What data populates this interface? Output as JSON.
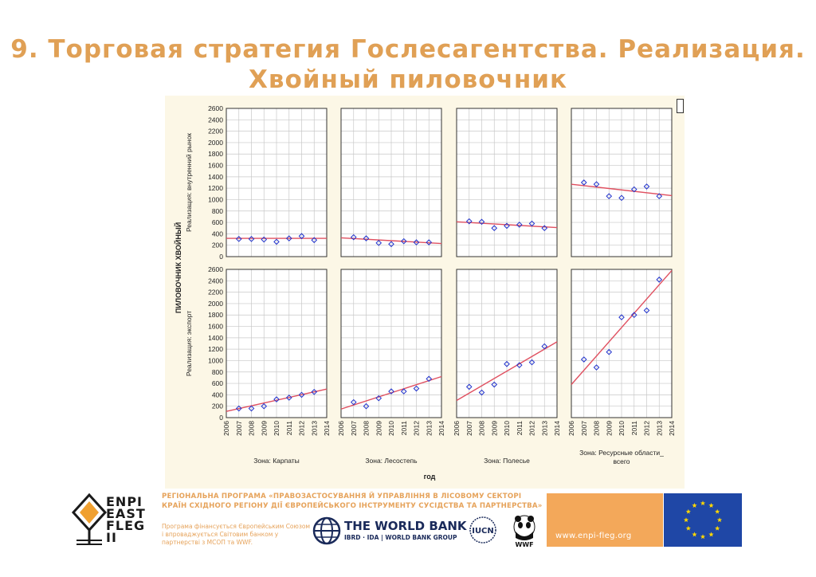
{
  "slide": {
    "title_line1": "9. Торговая стратегия Гослесагентства. Реализация.",
    "title_line2": "Хвойный пиловочник",
    "title_color": "#e0a055"
  },
  "chart_data": {
    "type": "scatter",
    "layout": "2x4 small multiples with linear trend lines",
    "ylabel": "ПИЛОВОЧНИК ХВОЙНЫЙ",
    "xlabel": "год",
    "row_labels": [
      "Реализация: внутренний рынок",
      "Реализация: экспорт"
    ],
    "zone_labels": [
      "Зона: Карпаты",
      "Зона: Лесостепь",
      "Зона: Полесье",
      "Зона: Ресурсные области_всего"
    ],
    "xlim": [
      2006,
      2014
    ],
    "ylim": [
      0,
      2600
    ],
    "x_ticks": [
      2006,
      2007,
      2008,
      2009,
      2010,
      2011,
      2012,
      2013,
      2014
    ],
    "y_ticks": [
      0,
      200,
      400,
      600,
      800,
      1000,
      1200,
      1400,
      1600,
      1800,
      2000,
      2200,
      2400,
      2600
    ],
    "grid": true,
    "point_color": "#2233cc",
    "line_color": "#e05060",
    "panels": [
      {
        "row": 0,
        "col": 0,
        "x": [
          2007,
          2008,
          2009,
          2010,
          2011,
          2012,
          2013
        ],
        "y": [
          310,
          310,
          300,
          260,
          320,
          360,
          290
        ],
        "trend": [
          [
            2006,
            320
          ],
          [
            2014,
            320
          ]
        ]
      },
      {
        "row": 0,
        "col": 1,
        "x": [
          2007,
          2008,
          2009,
          2010,
          2011,
          2012,
          2013
        ],
        "y": [
          340,
          320,
          240,
          220,
          270,
          250,
          250
        ],
        "trend": [
          [
            2006,
            330
          ],
          [
            2014,
            230
          ]
        ]
      },
      {
        "row": 0,
        "col": 2,
        "x": [
          2007,
          2008,
          2009,
          2010,
          2011,
          2012,
          2013
        ],
        "y": [
          620,
          610,
          500,
          540,
          560,
          580,
          500
        ],
        "trend": [
          [
            2006,
            610
          ],
          [
            2014,
            510
          ]
        ]
      },
      {
        "row": 0,
        "col": 3,
        "x": [
          2007,
          2008,
          2009,
          2010,
          2011,
          2012,
          2013
        ],
        "y": [
          1300,
          1270,
          1060,
          1030,
          1180,
          1230,
          1060
        ],
        "trend": [
          [
            2006,
            1270
          ],
          [
            2014,
            1070
          ]
        ]
      },
      {
        "row": 1,
        "col": 0,
        "x": [
          2007,
          2008,
          2009,
          2010,
          2011,
          2012,
          2013
        ],
        "y": [
          160,
          160,
          200,
          320,
          350,
          400,
          450
        ],
        "trend": [
          [
            2006,
            110
          ],
          [
            2014,
            500
          ]
        ]
      },
      {
        "row": 1,
        "col": 1,
        "x": [
          2007,
          2008,
          2009,
          2010,
          2011,
          2012,
          2013
        ],
        "y": [
          270,
          200,
          340,
          460,
          460,
          510,
          680
        ],
        "trend": [
          [
            2006,
            150
          ],
          [
            2014,
            720
          ]
        ]
      },
      {
        "row": 1,
        "col": 2,
        "x": [
          2007,
          2008,
          2009,
          2010,
          2011,
          2012,
          2013
        ],
        "y": [
          540,
          440,
          580,
          940,
          920,
          970,
          1250
        ],
        "trend": [
          [
            2006,
            300
          ],
          [
            2014,
            1330
          ]
        ]
      },
      {
        "row": 1,
        "col": 3,
        "x": [
          2007,
          2008,
          2009,
          2010,
          2011,
          2012,
          2013
        ],
        "y": [
          1020,
          880,
          1150,
          1760,
          1800,
          1880,
          2420
        ],
        "trend": [
          [
            2006,
            580
          ],
          [
            2014,
            2580
          ]
        ]
      }
    ]
  },
  "footer": {
    "program_text": "Регіональна програма «Правозастосування й управління в лісовому секторі країн Східного регіону дії Європейського інструменту сусідства та партнерства»",
    "funding_text": "Програма фінансується Європейським Союзом і впроваджується Світовим банком у партнерстві з МСОП та WWF.",
    "enpi_logo_text": [
      "ENPI",
      "EAST",
      "FLEG",
      "II"
    ],
    "worldbank_name": "THE WORLD BANK",
    "worldbank_sub": "IBRD · IDA | WORLD BANK GROUP",
    "iucn_text": "IUCN",
    "wwf_text": "WWF",
    "website": "www.enpi-fleg.org",
    "accent_orange": "#f3a85a",
    "eu_blue": "#1f47a6",
    "eu_star_color": "#ffd700"
  }
}
